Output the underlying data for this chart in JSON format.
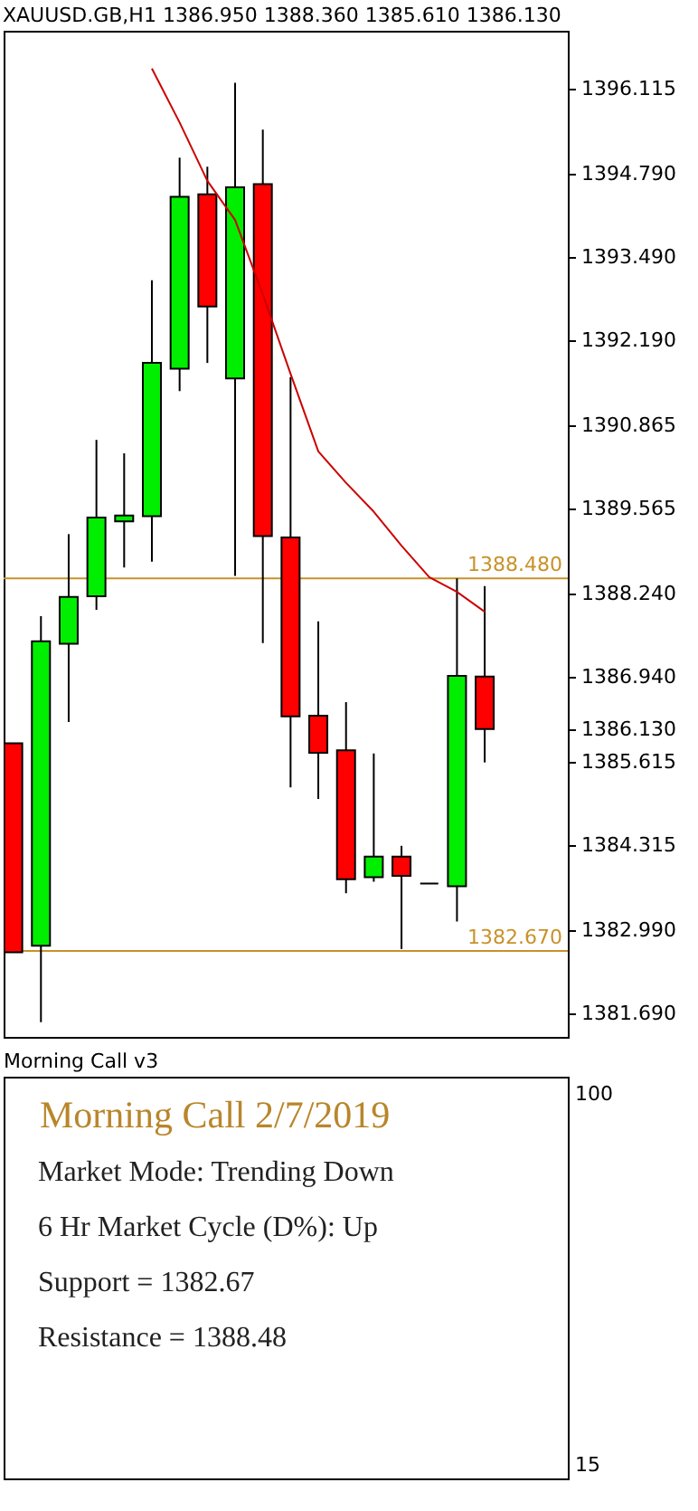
{
  "chart_data": [
    {
      "type": "candlestick",
      "title": "XAUUSD.GB,H1 1386.950 1388.360 1385.610 1386.130",
      "categories": [
        null,
        null,
        null,
        null,
        null,
        null,
        null,
        null,
        null,
        null,
        null,
        null,
        null,
        null,
        null,
        null,
        null,
        null
      ],
      "ohlc": [
        [
          1385.91,
          1385.91,
          1382.65,
          1382.65
        ],
        [
          1382.75,
          1387.89,
          1381.56,
          1387.5
        ],
        [
          1387.46,
          1389.17,
          1386.24,
          1388.19
        ],
        [
          1388.2,
          1390.64,
          1387.99,
          1389.43
        ],
        [
          1389.37,
          1390.43,
          1388.65,
          1389.46
        ],
        [
          1389.45,
          1393.13,
          1388.74,
          1391.84
        ],
        [
          1391.75,
          1395.04,
          1391.4,
          1394.43
        ],
        [
          1394.47,
          1394.9,
          1391.84,
          1392.72
        ],
        [
          1391.6,
          1396.21,
          1388.52,
          1394.58
        ],
        [
          1394.63,
          1395.48,
          1387.47,
          1389.14
        ],
        [
          1389.12,
          1391.62,
          1385.22,
          1386.33
        ],
        [
          1386.34,
          1387.81,
          1385.04,
          1385.76
        ],
        [
          1385.8,
          1386.55,
          1383.57,
          1383.79
        ],
        [
          1383.82,
          1385.75,
          1383.75,
          1384.14
        ],
        [
          1384.14,
          1384.31,
          1382.7,
          1383.84
        ],
        [
          1383.72,
          1383.72,
          1383.72,
          1383.72
        ],
        [
          1383.68,
          1388.48,
          1383.13,
          1386.96
        ],
        [
          1386.95,
          1388.36,
          1385.61,
          1386.13
        ]
      ],
      "colors": [
        "#ff0000",
        "#00ee00",
        "#00ee00",
        "#00ee00",
        "#00ee00",
        "#00ee00",
        "#00ee00",
        "#ff0000",
        "#00ee00",
        "#ff0000",
        "#ff0000",
        "#ff0000",
        "#ff0000",
        "#00ee00",
        "#ff0000",
        "#000000",
        "#00ee00",
        "#ff0000"
      ],
      "series": [
        {
          "type": "line",
          "color": "#cc0000",
          "values": [
            null,
            null,
            null,
            null,
            null,
            1396.43,
            1395.59,
            1394.68,
            1394.07,
            1392.91,
            1391.67,
            1390.46,
            1389.97,
            1389.52,
            1388.99,
            1388.5,
            1388.27,
            1387.96
          ]
        }
      ],
      "ylim": [
        1381.33,
        1397.02
      ],
      "yticks": [
        1396.115,
        {
          "value": 1394.79,
          "label": "1394.790"
        },
        {
          "value": 1393.49,
          "label": "1393.490"
        },
        {
          "value": 1392.19,
          "label": "1392.190"
        },
        1390.865,
        1389.565,
        {
          "value": 1388.24,
          "label": "1388.240"
        },
        {
          "value": 1386.94,
          "label": "1386.940"
        },
        {
          "value": 1386.13,
          "label": "1386.130"
        },
        1385.615,
        1384.315,
        {
          "value": 1382.99,
          "label": "1382.990"
        },
        {
          "value": 1381.69,
          "label": "1381.690"
        }
      ],
      "tick_labels": "y",
      "ref_lines": [
        {
          "axis": "y",
          "value": 1388.48,
          "label": "1388.480",
          "color": "#c8922a"
        },
        {
          "axis": "y",
          "value": 1382.67,
          "label": "1382.670",
          "color": "#c8922a"
        }
      ]
    },
    {
      "type": "other",
      "title": "Morning Call v3",
      "annotations": [
        "Morning Call 2/7/2019",
        "Market Mode: Trending Down",
        "6 Hr Market Cycle (D%): Up",
        "Support = 1382.67",
        "Resistance = 1388.48",
        "100",
        "15"
      ]
    }
  ]
}
